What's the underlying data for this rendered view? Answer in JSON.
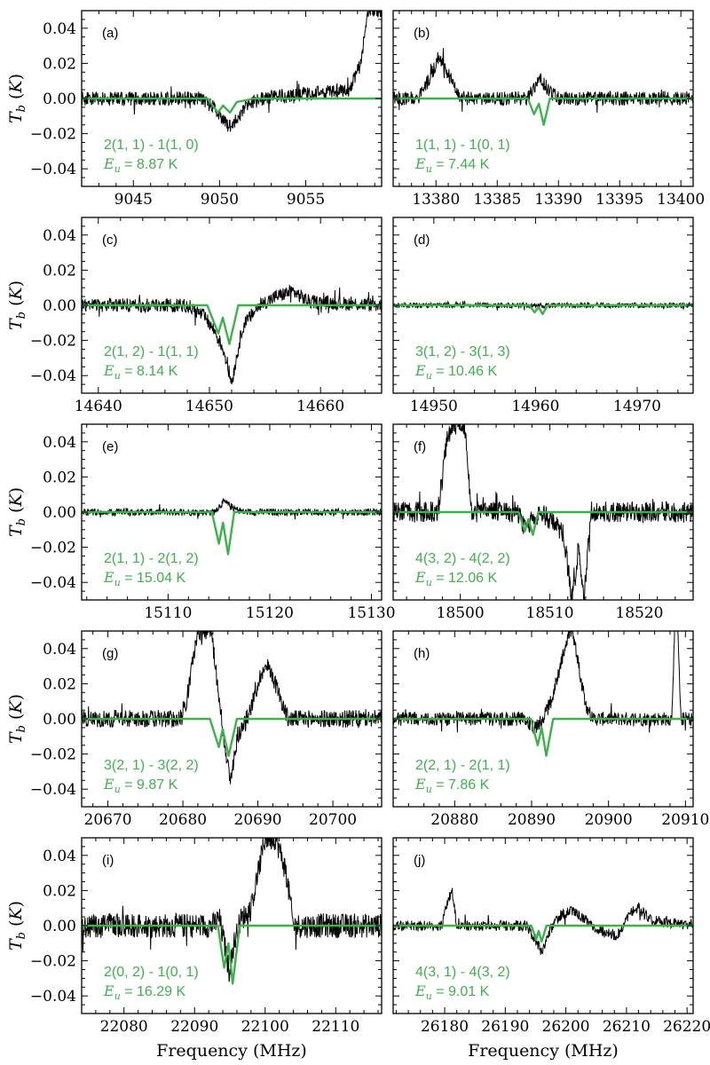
{
  "figure": {
    "xlabel": "Frequency (MHz)",
    "ylabel": "T_b (K)",
    "energy_symbol": "E_u",
    "colors": {
      "observed": "#000000",
      "model": "#3cb34a"
    }
  },
  "chart_data": [
    {
      "type": "line",
      "panel": "(a)",
      "transition": "2(1, 1) - 1(1, 0)",
      "energy": "8.87 K",
      "xlim": [
        9042,
        9059.4
      ],
      "ylim": [
        -0.05,
        0.05
      ],
      "xticks": [
        9045,
        9050,
        9055
      ],
      "yticks": [
        -0.04,
        -0.02,
        0.0,
        0.02,
        0.04
      ],
      "series": [
        {
          "x": [
            9042,
            9049,
            9049.8,
            9050.5,
            9051,
            9051.6,
            9052.5,
            9057.5,
            9058.2,
            9058.6,
            9059.4
          ],
          "y": [
            0.0,
            0.0,
            -0.006,
            -0.016,
            -0.012,
            -0.003,
            0.0,
            0.005,
            0.02,
            0.05,
            0.05
          ]
        },
        {
          "x": [
            9042,
            9049.3,
            9049.9,
            9050.2,
            9050.6,
            9051.0,
            9052,
            9059.4
          ],
          "y": [
            0.0,
            0.0,
            -0.008,
            -0.004,
            -0.008,
            -0.002,
            0.0,
            0.0
          ]
        }
      ]
    },
    {
      "type": "line",
      "panel": "(b)",
      "transition": "1(1, 1) - 1(0, 1)",
      "energy": "7.44 K",
      "xlim": [
        13376.5,
        13401
      ],
      "ylim": [
        -0.05,
        0.05
      ],
      "xticks": [
        13380,
        13385,
        13390,
        13395,
        13400
      ],
      "yticks": [
        -0.04,
        -0.02,
        0.0,
        0.02,
        0.04
      ],
      "series": [
        {
          "x": [
            13376.5,
            13378.5,
            13379.5,
            13380.3,
            13381,
            13382,
            13387.5,
            13388,
            13388.5,
            13389.3,
            13390,
            13401
          ],
          "y": [
            0.0,
            0.0,
            0.012,
            0.024,
            0.014,
            0.0,
            0.0,
            0.007,
            0.011,
            0.004,
            0.0,
            0.0
          ]
        },
        {
          "x": [
            13376.5,
            13387.5,
            13388.0,
            13388.4,
            13388.8,
            13389.3,
            13401
          ],
          "y": [
            0.0,
            0.0,
            -0.009,
            -0.003,
            -0.015,
            0.0,
            0.0
          ]
        }
      ]
    },
    {
      "type": "line",
      "panel": "(c)",
      "transition": "2(1, 2) - 1(1, 1)",
      "energy": "8.14 K",
      "xlim": [
        14638.5,
        14665.5
      ],
      "ylim": [
        -0.05,
        0.05
      ],
      "xticks": [
        14640,
        14650,
        14660
      ],
      "yticks": [
        -0.04,
        -0.02,
        0.0,
        0.02,
        0.04
      ],
      "series": [
        {
          "x": [
            14638.5,
            14648,
            14649.5,
            14650.5,
            14651.3,
            14652,
            14653,
            14654.5,
            14656,
            14657.5,
            14659,
            14665.5
          ],
          "y": [
            0.0,
            0.0,
            -0.006,
            -0.015,
            -0.026,
            -0.044,
            -0.012,
            0.0,
            0.005,
            0.008,
            0.002,
            0.0
          ]
        },
        {
          "x": [
            14638.5,
            14649.8,
            14650.8,
            14651.2,
            14651.8,
            14652.6,
            14665.5
          ],
          "y": [
            0.0,
            0.0,
            -0.016,
            -0.007,
            -0.022,
            0.0,
            0.0
          ]
        }
      ]
    },
    {
      "type": "line",
      "panel": "(d)",
      "transition": "3(1, 2) - 3(1, 3)",
      "energy": "10.46 K",
      "xlim": [
        14946,
        14975.5
      ],
      "ylim": [
        -0.05,
        0.05
      ],
      "xticks": [
        14950,
        14960,
        14970
      ],
      "yticks": [
        -0.04,
        -0.02,
        0.0,
        0.02,
        0.04
      ],
      "series": [
        {
          "x": [
            14946,
            14975.5
          ],
          "y": [
            0.0,
            0.0
          ]
        },
        {
          "x": [
            14946,
            14959.4,
            14959.9,
            14960.3,
            14960.7,
            14961.2,
            14975.5
          ],
          "y": [
            0.0,
            0.0,
            -0.004,
            -0.001,
            -0.005,
            0.0,
            0.0
          ]
        }
      ]
    },
    {
      "type": "line",
      "panel": "(e)",
      "transition": "2(1, 1) - 2(1, 2)",
      "energy": "15.04 K",
      "xlim": [
        15101.5,
        15131
      ],
      "ylim": [
        -0.05,
        0.05
      ],
      "xticks": [
        15110,
        15120,
        15130
      ],
      "yticks": [
        -0.04,
        -0.02,
        0.0,
        0.02,
        0.04
      ],
      "series": [
        {
          "x": [
            15101.5,
            15114.5,
            15115.5,
            15116.5,
            15117.5,
            15131
          ],
          "y": [
            0.0,
            0.0,
            0.006,
            0.002,
            0.0,
            0.0
          ]
        },
        {
          "x": [
            15101.5,
            15114.3,
            15115.0,
            15115.4,
            15115.9,
            15116.5,
            15131
          ],
          "y": [
            0.0,
            0.0,
            -0.018,
            -0.006,
            -0.024,
            0.0,
            0.0
          ]
        }
      ]
    },
    {
      "type": "line",
      "panel": "(f)",
      "transition": "4(3, 2) - 4(2, 2)",
      "energy": "12.06 K",
      "xlim": [
        18492.5,
        18526
      ],
      "ylim": [
        -0.05,
        0.05
      ],
      "xticks": [
        18500,
        18510,
        18520
      ],
      "yticks": [
        -0.04,
        -0.02,
        0.0,
        0.02,
        0.04
      ],
      "series": [
        {
          "x": [
            18492.5,
            18497.5,
            18498.5,
            18499.3,
            18500.5,
            18501.2,
            18506.5,
            18507.2,
            18508,
            18509,
            18511.5,
            18512.5,
            18513.2,
            18513.8,
            18514.6,
            18526
          ],
          "y": [
            0.0,
            0.0,
            0.04,
            0.05,
            0.05,
            0.0,
            0.0,
            -0.01,
            -0.004,
            0.0,
            -0.012,
            -0.05,
            -0.02,
            -0.05,
            0.0,
            0.0
          ]
        },
        {
          "x": [
            18492.5,
            18506.5,
            18507.2,
            18507.6,
            18508.1,
            18508.7,
            18526
          ],
          "y": [
            0.0,
            0.0,
            -0.011,
            -0.004,
            -0.013,
            0.0,
            0.0
          ]
        }
      ]
    },
    {
      "type": "line",
      "panel": "(g)",
      "transition": "3(2, 1) - 3(2, 2)",
      "energy": "9.87 K",
      "xlim": [
        20666.5,
        20706.5
      ],
      "ylim": [
        -0.05,
        0.05
      ],
      "xticks": [
        20670,
        20680,
        20690,
        20700
      ],
      "yticks": [
        -0.04,
        -0.02,
        0.0,
        0.02,
        0.04
      ],
      "series": [
        {
          "x": [
            20666.5,
            20679.5,
            20680.5,
            20681.2,
            20682,
            20683.8,
            20684.6,
            20685.4,
            20686.3,
            20687.3,
            20688.5,
            20689.5,
            20690.5,
            20691.5,
            20692.5,
            20694,
            20706.5
          ],
          "y": [
            0.0,
            0.0,
            0.01,
            0.03,
            0.05,
            0.05,
            0.02,
            -0.008,
            -0.036,
            -0.01,
            0.0,
            0.012,
            0.027,
            0.03,
            0.018,
            0.0,
            0.0
          ]
        },
        {
          "x": [
            20666.5,
            20683.6,
            20684.8,
            20685.3,
            20686.1,
            20687.2,
            20706.5
          ],
          "y": [
            0.0,
            0.0,
            -0.016,
            -0.006,
            -0.021,
            0.0,
            0.0
          ]
        }
      ]
    },
    {
      "type": "line",
      "panel": "(h)",
      "transition": "2(2, 1) - 2(1, 1)",
      "energy": "7.86 K",
      "xlim": [
        20872,
        20911
      ],
      "ylim": [
        -0.05,
        0.05
      ],
      "xticks": [
        20880,
        20890,
        20900,
        20910
      ],
      "yticks": [
        -0.04,
        -0.02,
        0.0,
        0.02,
        0.04
      ],
      "series": [
        {
          "x": [
            20872,
            20889,
            20890.5,
            20891.5,
            20892.5,
            20893.5,
            20894.5,
            20895.3,
            20896.3,
            20897.2,
            20898,
            20908.2,
            20908.6,
            20909.0,
            20909.4,
            20911
          ],
          "y": [
            0.0,
            0.0,
            -0.005,
            0.0,
            0.01,
            0.025,
            0.045,
            0.05,
            0.025,
            0.006,
            0.0,
            0.0,
            0.05,
            0.05,
            0.0,
            0.0
          ]
        },
        {
          "x": [
            20872,
            20889.9,
            20890.8,
            20891.3,
            20891.9,
            20892.8,
            20911
          ],
          "y": [
            0.0,
            0.0,
            -0.015,
            -0.005,
            -0.021,
            0.0,
            0.0
          ]
        }
      ]
    },
    {
      "type": "line",
      "panel": "(i)",
      "transition": "2(0, 2) - 1(0, 1)",
      "energy": "16.29 K",
      "xlim": [
        22074,
        22116.5
      ],
      "ylim": [
        -0.05,
        0.05
      ],
      "xticks": [
        22080,
        22090,
        22100,
        22110
      ],
      "yticks": [
        -0.04,
        -0.02,
        0.0,
        0.02,
        0.04
      ],
      "series": [
        {
          "x": [
            22074,
            22092.5,
            22093.5,
            22094.2,
            22094.9,
            22095.6,
            22096.5,
            22098,
            22099,
            22100,
            22101.5,
            22103,
            22104,
            22116.5
          ],
          "y": [
            0.0,
            0.0,
            0.004,
            -0.01,
            -0.026,
            -0.01,
            0.003,
            0.01,
            0.03,
            0.05,
            0.05,
            0.03,
            0.0,
            0.0
          ]
        },
        {
          "x": [
            22074,
            22093.3,
            22094.2,
            22094.8,
            22095.4,
            22096.4,
            22116.5
          ],
          "y": [
            0.0,
            0.0,
            -0.024,
            -0.01,
            -0.033,
            0.0,
            0.0
          ]
        }
      ]
    },
    {
      "type": "line",
      "panel": "(j)",
      "transition": "4(3, 1) - 4(3, 2)",
      "energy": "9.01 K",
      "xlim": [
        26171.5,
        26221
      ],
      "ylim": [
        -0.05,
        0.05
      ],
      "xticks": [
        26180,
        26190,
        26200,
        26210,
        26220
      ],
      "yticks": [
        -0.04,
        -0.02,
        0.0,
        0.02,
        0.04
      ],
      "series": [
        {
          "x": [
            26171.5,
            26179.5,
            26180.5,
            26181.2,
            26182,
            26193.5,
            26195,
            26196,
            26197.5,
            26199,
            26201,
            26203,
            26205,
            26207,
            26208.5,
            26209.5,
            26210.5,
            26212,
            26214,
            26221
          ],
          "y": [
            0.0,
            0.0,
            0.014,
            0.02,
            0.0,
            0.0,
            -0.008,
            -0.015,
            -0.002,
            0.006,
            0.008,
            0.004,
            -0.002,
            -0.004,
            -0.006,
            0.0,
            0.008,
            0.01,
            0.003,
            0.0
          ]
        },
        {
          "x": [
            26171.5,
            26194.3,
            26195.1,
            26195.5,
            26196.0,
            26196.8,
            26221
          ],
          "y": [
            0.0,
            0.0,
            -0.008,
            -0.003,
            -0.009,
            0.0,
            0.0
          ]
        }
      ]
    }
  ]
}
